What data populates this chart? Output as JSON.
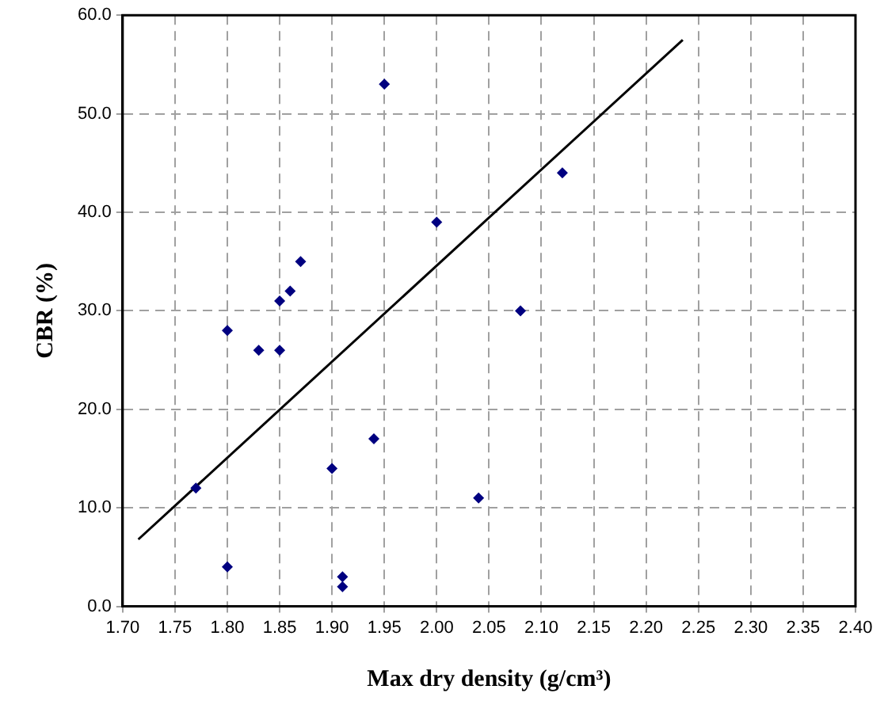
{
  "chart_data": {
    "type": "scatter",
    "xlabel": "Max dry density (g/cm³)",
    "ylabel": "CBR (%)",
    "xlim": [
      1.7,
      2.4
    ],
    "ylim": [
      0,
      60
    ],
    "xticks": [
      {
        "value": 1.7,
        "label": "1.70"
      },
      {
        "value": 1.75,
        "label": "1.75"
      },
      {
        "value": 1.8,
        "label": "1.80"
      },
      {
        "value": 1.85,
        "label": "1.85"
      },
      {
        "value": 1.9,
        "label": "1.90"
      },
      {
        "value": 1.95,
        "label": "1.95"
      },
      {
        "value": 2.0,
        "label": "2.00"
      },
      {
        "value": 2.05,
        "label": "2.05"
      },
      {
        "value": 2.1,
        "label": "2.10"
      },
      {
        "value": 2.15,
        "label": "2.15"
      },
      {
        "value": 2.2,
        "label": "2.20"
      },
      {
        "value": 2.25,
        "label": "2.25"
      },
      {
        "value": 2.3,
        "label": "2.30"
      },
      {
        "value": 2.35,
        "label": "2.35"
      },
      {
        "value": 2.4,
        "label": "2.40"
      }
    ],
    "yticks": [
      {
        "value": 0,
        "label": "0.0"
      },
      {
        "value": 10,
        "label": "10.0"
      },
      {
        "value": 20,
        "label": "20.0"
      },
      {
        "value": 30,
        "label": "30.0"
      },
      {
        "value": 40,
        "label": "40.0"
      },
      {
        "value": 50,
        "label": "50.0"
      },
      {
        "value": 60,
        "label": "60.0"
      }
    ],
    "grid": true,
    "series": [
      {
        "marker": "diamond",
        "color": "#000080",
        "x": [
          1.77,
          1.8,
          1.8,
          1.83,
          1.85,
          1.85,
          1.86,
          1.87,
          1.9,
          1.91,
          1.91,
          1.94,
          1.95,
          2.0,
          2.04,
          2.08,
          2.12
        ],
        "values": [
          12,
          28,
          4,
          26,
          26,
          31,
          32,
          35,
          14,
          3,
          2,
          17,
          53,
          39,
          11,
          30,
          44
        ]
      },
      {
        "type": "line",
        "marker": "none",
        "color": "#000000",
        "x": [
          1.715,
          2.235
        ],
        "values": [
          6.8,
          57.5
        ]
      }
    ]
  }
}
